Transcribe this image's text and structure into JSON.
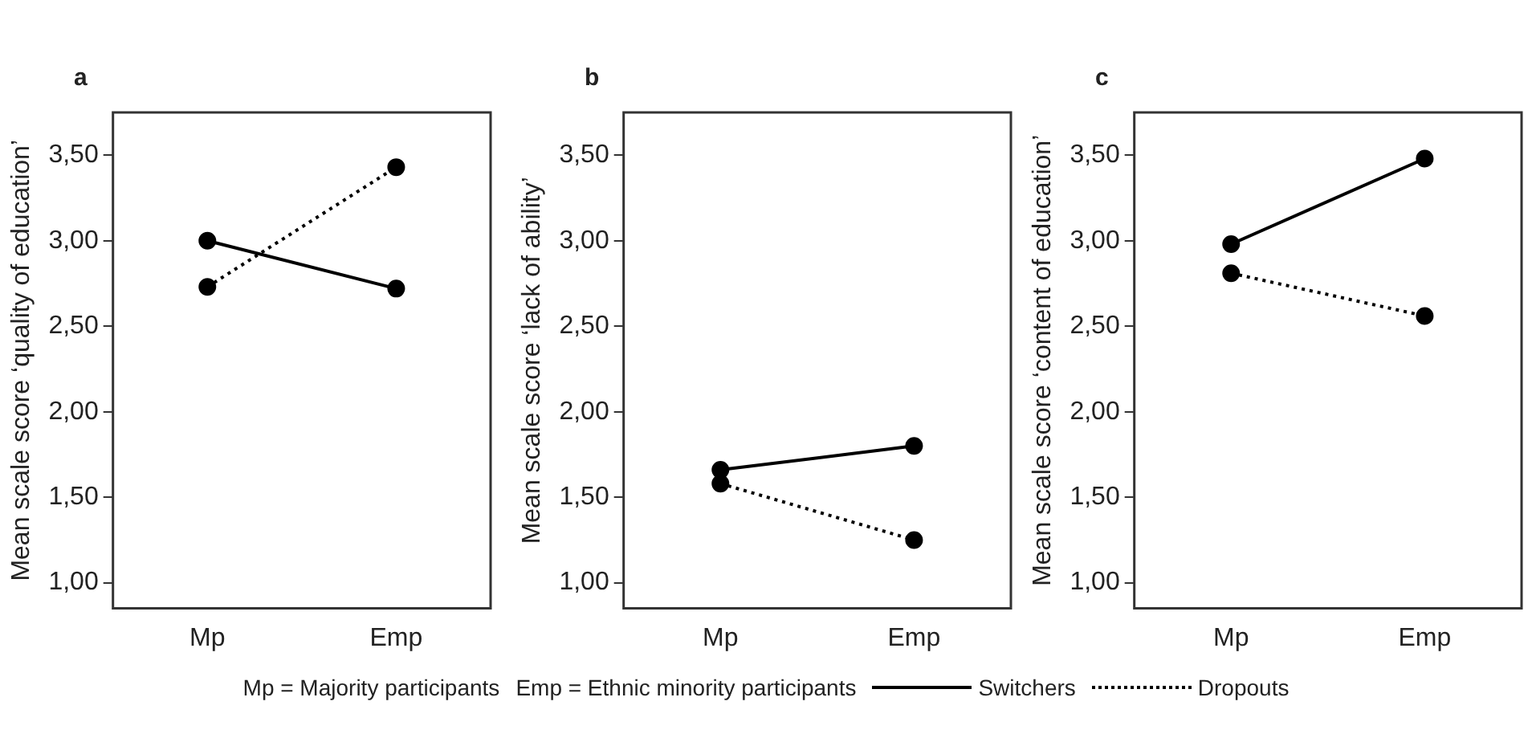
{
  "chart_data": [
    {
      "type": "line",
      "title": "a",
      "ylabel": "Mean scale score ‘quality of education’",
      "categories": [
        "Mp",
        "Emp"
      ],
      "series": [
        {
          "name": "Switchers",
          "color": "#000000",
          "line_style": "solid",
          "values": [
            3.0,
            2.72
          ]
        },
        {
          "name": "Dropouts",
          "color": "#000000",
          "line_style": "dotted",
          "values": [
            2.73,
            3.43
          ]
        }
      ],
      "ylim": [
        0.85,
        3.75
      ],
      "yticks": [
        {
          "value": 1,
          "label": "1,00"
        },
        {
          "value": 1.5,
          "label": "1,50"
        },
        {
          "value": 2,
          "label": "2,00"
        },
        {
          "value": 2.5,
          "label": "2,50"
        },
        {
          "value": 3,
          "label": "3,00"
        },
        {
          "value": 3.5,
          "label": "3,50"
        }
      ],
      "marker": "circle",
      "grid": false,
      "legend": "bottom",
      "annotations": [
        "Mp = Majority participants",
        "Emp = Ethnic minority participants"
      ]
    },
    {
      "type": "line",
      "title": "b",
      "ylabel": "Mean scale score ‘lack of ability’",
      "categories": [
        "Mp",
        "Emp"
      ],
      "series": [
        {
          "color": "#000000",
          "line_style": "solid",
          "values": [
            1.66,
            1.8
          ]
        },
        {
          "color": "#000000",
          "line_style": "dotted",
          "values": [
            1.58,
            1.25
          ]
        }
      ],
      "ylim": [
        0.85,
        3.75
      ],
      "yticks": [
        {
          "value": 1,
          "label": "1,00"
        },
        {
          "value": 1.5,
          "label": "1,50"
        },
        {
          "value": 2,
          "label": "2,00"
        },
        {
          "value": 2.5,
          "label": "2,50"
        },
        {
          "value": 3,
          "label": "3,00"
        },
        {
          "value": 3.5,
          "label": "3,50"
        }
      ],
      "marker": "circle",
      "grid": false
    },
    {
      "type": "line",
      "title": "c",
      "ylabel": "Mean scale score ‘content of education’",
      "categories": [
        "Mp",
        "Emp"
      ],
      "series": [
        {
          "color": "#000000",
          "line_style": "solid",
          "values": [
            2.98,
            3.48
          ]
        },
        {
          "color": "#000000",
          "line_style": "dotted",
          "values": [
            2.81,
            2.56
          ]
        }
      ],
      "ylim": [
        0.85,
        3.75
      ],
      "yticks": [
        {
          "value": 1,
          "label": "1,00"
        },
        {
          "value": 1.5,
          "label": "1,50"
        },
        {
          "value": 2,
          "label": "2,00"
        },
        {
          "value": 2.5,
          "label": "2,50"
        },
        {
          "value": 3,
          "label": "3,00"
        },
        {
          "value": 3.5,
          "label": "3,50"
        }
      ],
      "marker": "circle",
      "grid": false
    }
  ]
}
